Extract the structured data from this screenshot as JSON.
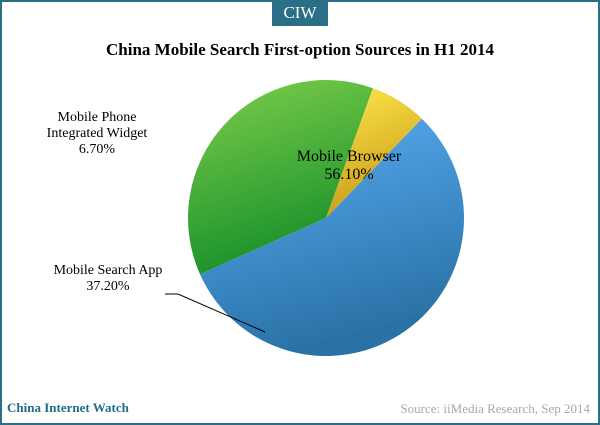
{
  "brand": {
    "logo_text": "CIW",
    "site_name": "China Internet Watch"
  },
  "source": "Source: iiMedia Research, Sep 2014",
  "chart_data": {
    "type": "pie",
    "title": "China Mobile Search First-option Sources in H1 2014",
    "slices": [
      {
        "label": [
          "Mobile Browser"
        ],
        "value": 56.1,
        "value_label": "56.10%",
        "color_light": "#5aaef6",
        "color_dark": "#2a72a6"
      },
      {
        "label": [
          "Mobile Search App"
        ],
        "value": 37.2,
        "value_label": "37.20%",
        "color_light": "#7fcf4c",
        "color_dark": "#17902a"
      },
      {
        "label": [
          "Mobile Phone",
          "Integrated Widget"
        ],
        "value": 6.7,
        "value_label": "6.70%",
        "color_light": "#ffe94a",
        "color_dark": "#c99a1a"
      }
    ],
    "legend": false
  }
}
